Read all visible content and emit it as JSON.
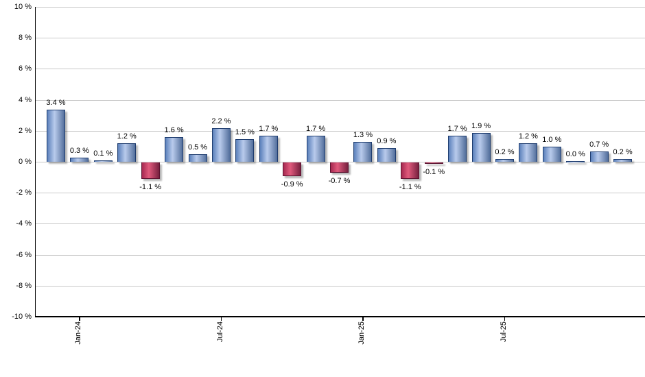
{
  "chart_data": {
    "type": "bar",
    "title": "",
    "legend": "none",
    "grid": "horizontal",
    "y_axis": {
      "unit": "%",
      "min": -10,
      "max": 10,
      "tick_step": 2,
      "tick_labels": [
        "10 %",
        "8 %",
        "6 %",
        "4 %",
        "2 %",
        "0 %",
        "-2 %",
        "-4 %",
        "-6 %",
        "-8 %",
        "-10 %"
      ]
    },
    "x_axis": {
      "ticks": [
        {
          "bar_index": 1,
          "label": "Jan-24"
        },
        {
          "bar_index": 7,
          "label": "Jul-24"
        },
        {
          "bar_index": 13,
          "label": "Jan-25"
        },
        {
          "bar_index": 19,
          "label": "Jul-25"
        }
      ]
    },
    "bars": [
      {
        "value": 3.4,
        "label": "3.4 %"
      },
      {
        "value": 0.3,
        "label": "0.3 %"
      },
      {
        "value": 0.1,
        "label": "0.1 %"
      },
      {
        "value": 1.2,
        "label": "1.2 %"
      },
      {
        "value": -1.1,
        "label": "-1.1 %"
      },
      {
        "value": 1.6,
        "label": "1.6 %"
      },
      {
        "value": 0.5,
        "label": "0.5 %"
      },
      {
        "value": 2.2,
        "label": "2.2 %"
      },
      {
        "value": 1.5,
        "label": "1.5 %"
      },
      {
        "value": 1.7,
        "label": "1.7 %"
      },
      {
        "value": -0.9,
        "label": "-0.9 %"
      },
      {
        "value": 1.7,
        "label": "1.7 %"
      },
      {
        "value": -0.7,
        "label": "-0.7 %"
      },
      {
        "value": 1.3,
        "label": "1.3 %"
      },
      {
        "value": 0.9,
        "label": "0.9 %"
      },
      {
        "value": -1.1,
        "label": "-1.1 %"
      },
      {
        "value": -0.1,
        "label": "-0.1 %"
      },
      {
        "value": 1.7,
        "label": "1.7 %"
      },
      {
        "value": 1.9,
        "label": "1.9 %"
      },
      {
        "value": 0.2,
        "label": "0.2 %"
      },
      {
        "value": 1.2,
        "label": "1.2 %"
      },
      {
        "value": 1.0,
        "label": "1.0 %"
      },
      {
        "value": 0.0,
        "label": "0.0 %"
      },
      {
        "value": 0.7,
        "label": "0.7 %"
      },
      {
        "value": 0.2,
        "label": "0.2 %"
      }
    ],
    "colors": {
      "positive_bar_edge": "#5b80bb",
      "positive_bar_light": "#b9cbec",
      "positive_bar_dark": "#536f9c",
      "positive_bar_border": "#1e3c6e",
      "negative_bar_edge": "#a62950",
      "negative_bar_light": "#e05a7c",
      "negative_bar_dark": "#77203f",
      "negative_bar_border": "#5c1230",
      "gridline": "#c8c8c8",
      "axis": "#000000",
      "background": "#ffffff",
      "label_text": "#000000"
    }
  }
}
